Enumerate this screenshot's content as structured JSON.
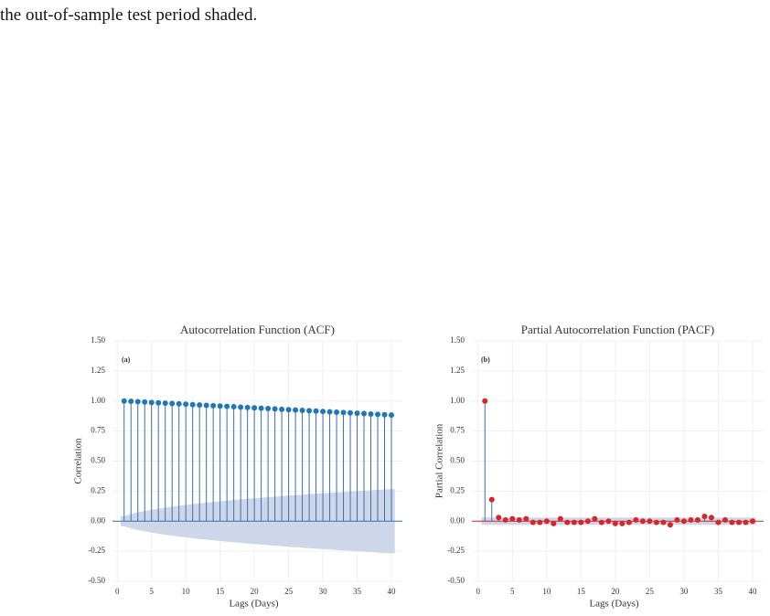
{
  "text": "the out-of-sample test period shaded.",
  "chart_data": [
    {
      "type": "stem",
      "title": "Autocorrelation Function (ACF)",
      "panel_label": "(a)",
      "xlabel": "Lags (Days)",
      "ylabel": "Correlation",
      "x": [
        1,
        2,
        3,
        4,
        5,
        6,
        7,
        8,
        9,
        10,
        11,
        12,
        13,
        14,
        15,
        16,
        17,
        18,
        19,
        20,
        21,
        22,
        23,
        24,
        25,
        26,
        27,
        28,
        29,
        30,
        31,
        32,
        33,
        34,
        35,
        36,
        37,
        38,
        39,
        40
      ],
      "values": [
        1.0,
        0.997,
        0.994,
        0.991,
        0.988,
        0.985,
        0.982,
        0.979,
        0.976,
        0.973,
        0.97,
        0.967,
        0.964,
        0.961,
        0.958,
        0.955,
        0.952,
        0.949,
        0.946,
        0.943,
        0.94,
        0.937,
        0.934,
        0.931,
        0.928,
        0.925,
        0.922,
        0.919,
        0.916,
        0.913,
        0.91,
        0.907,
        0.904,
        0.901,
        0.898,
        0.895,
        0.892,
        0.889,
        0.886,
        0.883
      ],
      "confidence": [
        0.043,
        0.06,
        0.074,
        0.085,
        0.095,
        0.104,
        0.113,
        0.121,
        0.128,
        0.135,
        0.142,
        0.148,
        0.154,
        0.16,
        0.165,
        0.171,
        0.176,
        0.181,
        0.186,
        0.19,
        0.195,
        0.2,
        0.204,
        0.208,
        0.213,
        0.217,
        0.221,
        0.225,
        0.229,
        0.232,
        0.236,
        0.24,
        0.243,
        0.247,
        0.25,
        0.254,
        0.257,
        0.261,
        0.264,
        0.267
      ],
      "color": "#1f77b4",
      "stem_color": "#3a6ea8",
      "band_color": "#c9d3e8",
      "zero_line_color": "#3a6ea8",
      "xlim": [
        -0.7,
        41.6
      ],
      "ylim": [
        -0.5,
        1.5
      ],
      "xticks": [
        0,
        5,
        10,
        15,
        20,
        25,
        30,
        35,
        40
      ],
      "yticks": [
        {
          "value": -0.5,
          "label": "-0.50"
        },
        {
          "value": -0.25,
          "label": "-0.25"
        },
        {
          "value": 0,
          "label": "0.00"
        },
        {
          "value": 0.25,
          "label": "0.25"
        },
        {
          "value": 0.5,
          "label": "0.50"
        },
        {
          "value": 0.75,
          "label": "0.75"
        },
        {
          "value": 1,
          "label": "1.00"
        },
        {
          "value": 1.25,
          "label": "1.25"
        },
        {
          "value": 1.5,
          "label": "1.50"
        }
      ],
      "grid": true
    },
    {
      "type": "stem",
      "title": "Partial Autocorrelation Function (PACF)",
      "panel_label": "(b)",
      "xlabel": "Lags (Days)",
      "ylabel": "Partial Correlation",
      "x": [
        1,
        2,
        3,
        4,
        5,
        6,
        7,
        8,
        9,
        10,
        11,
        12,
        13,
        14,
        15,
        16,
        17,
        18,
        19,
        20,
        21,
        22,
        23,
        24,
        25,
        26,
        27,
        28,
        29,
        30,
        31,
        32,
        33,
        34,
        35,
        36,
        37,
        38,
        39,
        40
      ],
      "values": [
        1.0,
        0.18,
        0.03,
        0.01,
        0.02,
        0.01,
        0.02,
        -0.01,
        -0.01,
        0.0,
        -0.02,
        0.02,
        -0.01,
        -0.01,
        -0.01,
        0.0,
        0.02,
        -0.01,
        0.0,
        -0.02,
        -0.02,
        -0.01,
        0.01,
        0.0,
        0.0,
        -0.01,
        -0.01,
        -0.03,
        0.01,
        0.0,
        0.01,
        0.01,
        0.04,
        0.03,
        -0.01,
        0.01,
        -0.01,
        -0.01,
        -0.01,
        0.0
      ],
      "confidence": 0.03,
      "color": "#d62728",
      "stem_color": "#3a6ea8",
      "band_color": "#c9d3e8",
      "zero_line_color": "#d62728",
      "xlim": [
        -0.9,
        41.6
      ],
      "ylim": [
        -0.5,
        1.5
      ],
      "xticks": [
        0,
        5,
        10,
        15,
        20,
        25,
        30,
        35,
        40
      ],
      "yticks": [
        {
          "value": -0.5,
          "label": "-0.50"
        },
        {
          "value": -0.25,
          "label": "-0.25"
        },
        {
          "value": 0,
          "label": "0.00"
        },
        {
          "value": 0.25,
          "label": "0.25"
        },
        {
          "value": 0.5,
          "label": "0.50"
        },
        {
          "value": 0.75,
          "label": "0.75"
        },
        {
          "value": 1,
          "label": "1.00"
        },
        {
          "value": 1.25,
          "label": "1.25"
        },
        {
          "value": 1.5,
          "label": "1.50"
        }
      ],
      "grid": true
    }
  ]
}
